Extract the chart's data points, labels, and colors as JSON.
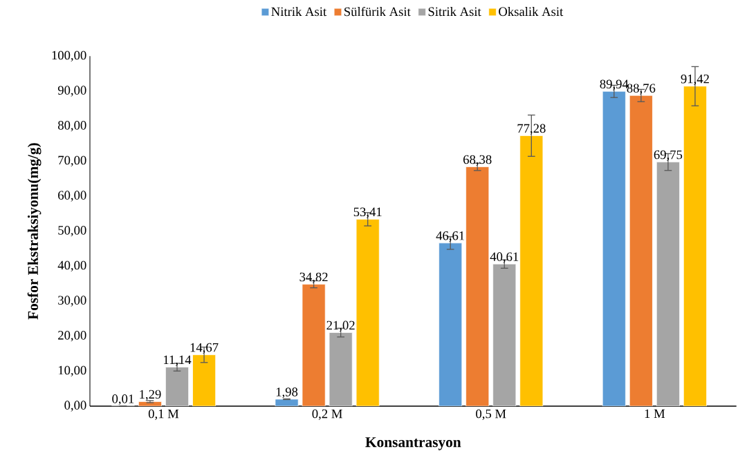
{
  "chart_data": {
    "type": "bar",
    "xlabel": "Konsantrasyon",
    "ylabel": "Fosfor Ekstraksiyonu(mg/g)",
    "categories": [
      "0,1 M",
      "0,2 M",
      "0,5 M",
      "1 M"
    ],
    "series": [
      {
        "name": "Nitrik Asit",
        "color": "#5b9bd5",
        "values": [
          0.01,
          1.98,
          46.61,
          89.94
        ],
        "errors": [
          null,
          0.1,
          1.8,
          1.75
        ],
        "value_labels": [
          "0,01",
          "1,98",
          "46,61",
          "89,94"
        ]
      },
      {
        "name": "Sülfürik Asit",
        "color": "#ed7d31",
        "values": [
          1.29,
          34.82,
          68.38,
          88.76
        ],
        "errors": [
          0.3,
          1.0,
          1.05,
          1.75
        ],
        "value_labels": [
          "1,29",
          "34,82",
          "68,38",
          "88,76"
        ]
      },
      {
        "name": "Sitrik Asit",
        "color": "#a5a5a5",
        "values": [
          11.14,
          21.02,
          40.61,
          69.75
        ],
        "errors": [
          1.1,
          1.25,
          1.2,
          2.4
        ],
        "value_labels": [
          "11,14",
          "21,02",
          "40,61",
          "69,75"
        ]
      },
      {
        "name": "Oksalik Asit",
        "color": "#ffc000",
        "values": [
          14.67,
          53.41,
          77.28,
          91.42
        ],
        "errors": [
          2.2,
          1.9,
          5.9,
          5.6
        ],
        "value_labels": [
          "14,67",
          "53,41",
          "77,28",
          "91,42"
        ]
      }
    ],
    "ylim": [
      0,
      100
    ],
    "yticks": [
      {
        "value": 0,
        "label": "0,00"
      },
      {
        "value": 10,
        "label": "10,00"
      },
      {
        "value": 20,
        "label": "20,00"
      },
      {
        "value": 30,
        "label": "30,00"
      },
      {
        "value": 40,
        "label": "40,00"
      },
      {
        "value": 50,
        "label": "50,00"
      },
      {
        "value": 60,
        "label": "60,00"
      },
      {
        "value": 70,
        "label": "70,00"
      },
      {
        "value": 80,
        "label": "80,00"
      },
      {
        "value": 90,
        "label": "90,00"
      },
      {
        "value": 100,
        "label": "100,00"
      }
    ],
    "legend": "top",
    "grid": false
  }
}
